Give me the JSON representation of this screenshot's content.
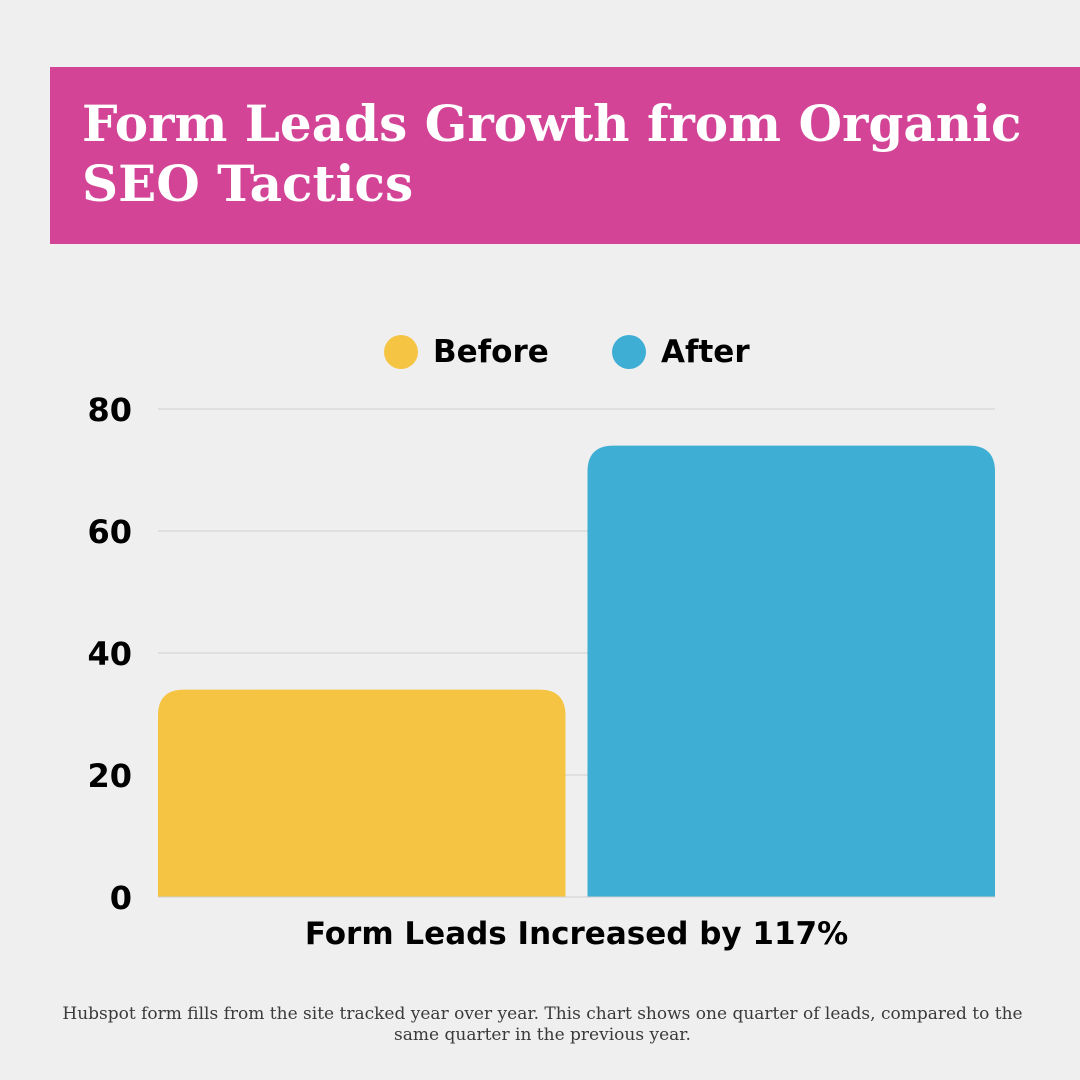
{
  "header": {
    "title": "Form Leads Growth from Organic SEO Tactics"
  },
  "colors": {
    "banner": "#d34497",
    "before": "#f5c443",
    "after": "#3eaed4",
    "background": "#efefef",
    "gridline": "#cfcfcf"
  },
  "chart_data": {
    "type": "bar",
    "categories": [
      "Form Leads Increased by 117%"
    ],
    "series": [
      {
        "name": "Before",
        "values": [
          34
        ]
      },
      {
        "name": "After",
        "values": [
          74
        ]
      }
    ],
    "title": "",
    "xlabel": "",
    "ylabel": "",
    "ylim": [
      0,
      80
    ],
    "yticks": [
      0,
      20,
      40,
      60,
      80
    ],
    "grid": true,
    "legend_position": "top-center"
  },
  "footnote": "Hubspot form fills from the site tracked year over year. This chart shows one quarter of leads, compared to the same quarter in the previous year."
}
